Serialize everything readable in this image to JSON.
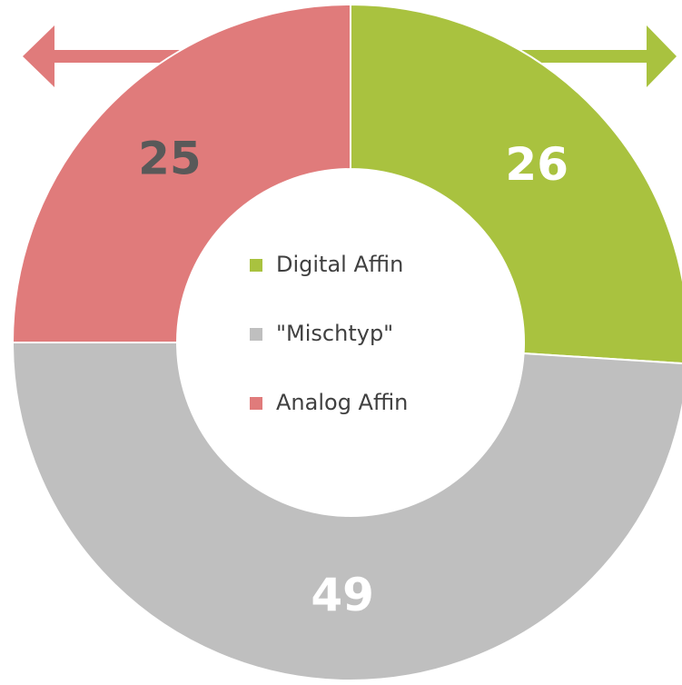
{
  "chart_data": {
    "type": "donut",
    "categories": [
      "Digital Affin",
      "\"Mischtyp\"",
      "Analog Affin"
    ],
    "values": [
      26,
      49,
      25
    ],
    "colors": [
      "#a9c23f",
      "#bfbfbf",
      "#e07b7b"
    ]
  }
}
